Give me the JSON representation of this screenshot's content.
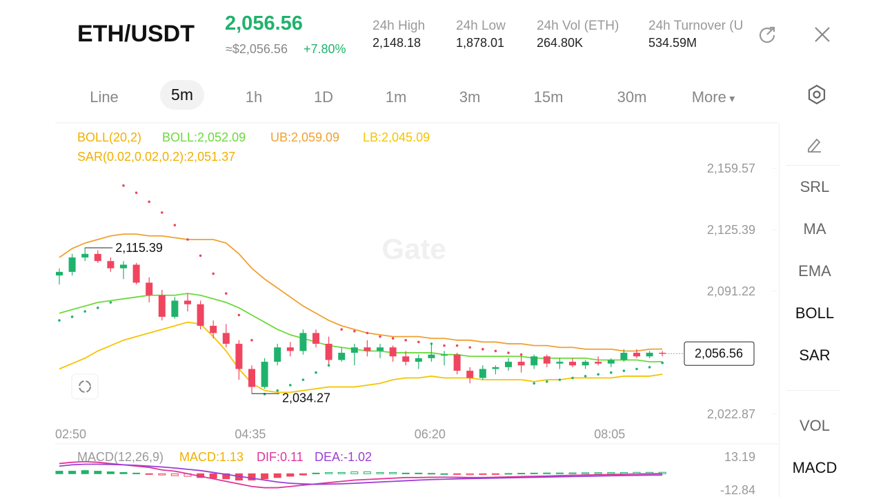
{
  "header": {
    "pair": "ETH/USDT",
    "price": "2,056.56",
    "price_usd": "≈$2,056.56",
    "change": "+7.80%",
    "stats": [
      {
        "label": "24h  High",
        "value": "2,148.18"
      },
      {
        "label": "24h  Low",
        "value": "1,878.01"
      },
      {
        "label": "24h  Vol (ETH)",
        "value": "264.80K"
      },
      {
        "label": "24h  Turnover (U",
        "value": "534.59M"
      }
    ]
  },
  "tabs": [
    "Line",
    "5m",
    "1h",
    "1D",
    "1m",
    "3m",
    "15m",
    "30m",
    "More"
  ],
  "tools": [
    "SRL",
    "MA",
    "EMA",
    "BOLL",
    "SAR",
    "VOL",
    "MACD"
  ],
  "chart_data": [
    {
      "type": "candlestick",
      "watermark": "Gate",
      "legend": [
        "BOLL(20,2)",
        "BOLL:2,052.09",
        "UB:2,059.09",
        "LB:2,045.09"
      ],
      "legend2": "SAR(0.02,0.02,0.2):2,051.37",
      "high_label": "2,115.39",
      "low_label": "2,034.27",
      "last_label": "2,056.56",
      "ylim": [
        2017.1,
        2184.1
      ],
      "yticks": [
        {
          "value": 2159.57,
          "label": "2,159.57"
        },
        {
          "value": 2125.39,
          "label": "2,125.39"
        },
        {
          "value": 2091.22,
          "label": "2,091.22"
        },
        {
          "value": 2022.87,
          "label": "2,022.87"
        }
      ],
      "x": [
        "02:50",
        null,
        null,
        null,
        null,
        null,
        null,
        null,
        null,
        null,
        null,
        null,
        null,
        null,
        "04:35",
        null,
        null,
        null,
        null,
        null,
        null,
        null,
        null,
        null,
        null,
        null,
        null,
        null,
        "06:20",
        null,
        null,
        null,
        null,
        null,
        null,
        null,
        null,
        null,
        null,
        null,
        null,
        null,
        "08:05",
        null,
        null,
        null,
        null,
        null
      ],
      "candles": [
        [
          2100,
          2104,
          2095,
          2102
        ],
        [
          2102,
          2112,
          2100,
          2110
        ],
        [
          2110,
          2115.39,
          2108,
          2112
        ],
        [
          2112,
          2114,
          2107,
          2108
        ],
        [
          2108,
          2110,
          2102,
          2104
        ],
        [
          2104,
          2108,
          2098,
          2106
        ],
        [
          2106,
          2107,
          2095,
          2096
        ],
        [
          2096,
          2099,
          2085,
          2089
        ],
        [
          2089,
          2092,
          2075,
          2077
        ],
        [
          2077,
          2088,
          2076,
          2086
        ],
        [
          2086,
          2090,
          2080,
          2084
        ],
        [
          2084,
          2086,
          2070,
          2072
        ],
        [
          2072,
          2075,
          2065,
          2068
        ],
        [
          2068,
          2073,
          2060,
          2062
        ],
        [
          2062,
          2064,
          2042,
          2048
        ],
        [
          2048,
          2050,
          2034.27,
          2038
        ],
        [
          2038,
          2054,
          2037,
          2052
        ],
        [
          2052,
          2062,
          2050,
          2060
        ],
        [
          2060,
          2063,
          2055,
          2058
        ],
        [
          2058,
          2070,
          2056,
          2068
        ],
        [
          2068,
          2070,
          2060,
          2062
        ],
        [
          2062,
          2066,
          2050,
          2053
        ],
        [
          2053,
          2060,
          2052,
          2057
        ],
        [
          2057,
          2062,
          2050,
          2060
        ],
        [
          2060,
          2064,
          2055,
          2058
        ],
        [
          2058,
          2062,
          2054,
          2060
        ],
        [
          2060,
          2061,
          2052,
          2055
        ],
        [
          2055,
          2058,
          2050,
          2052
        ],
        [
          2052,
          2056,
          2048,
          2054
        ],
        [
          2054,
          2062,
          2052,
          2056
        ],
        [
          2056,
          2058,
          2050,
          2056
        ],
        [
          2056,
          2057,
          2045,
          2047
        ],
        [
          2047,
          2049,
          2040,
          2043
        ],
        [
          2043,
          2050,
          2042,
          2048
        ],
        [
          2048,
          2050,
          2045,
          2049
        ],
        [
          2049,
          2054,
          2047,
          2052
        ],
        [
          2052,
          2055,
          2046,
          2050
        ],
        [
          2050,
          2056,
          2048,
          2055
        ],
        [
          2055,
          2056,
          2049,
          2051
        ],
        [
          2051,
          2054,
          2048,
          2052
        ],
        [
          2052,
          2054,
          2049,
          2050
        ],
        [
          2050,
          2053,
          2048,
          2052
        ],
        [
          2052,
          2055,
          2050,
          2051
        ],
        [
          2051,
          2054,
          2049,
          2053
        ],
        [
          2053,
          2059,
          2052,
          2057
        ],
        [
          2057,
          2059,
          2054,
          2055
        ],
        [
          2055,
          2058,
          2054,
          2057
        ],
        [
          2057,
          2058,
          2055,
          2056.56
        ]
      ],
      "series": [
        {
          "name": "UB",
          "color": "#f0a030",
          "values": [
            2110,
            2115,
            2118,
            2120,
            2122,
            2123,
            2123,
            2122,
            2122,
            2121,
            2120,
            2120,
            2120,
            2118,
            2112,
            2104,
            2098,
            2093,
            2088,
            2083,
            2079,
            2075,
            2072,
            2070,
            2068,
            2067,
            2066,
            2066,
            2066,
            2065,
            2065,
            2064,
            2064,
            2063,
            2063,
            2062,
            2062,
            2061,
            2061,
            2060,
            2060,
            2059,
            2059,
            2059,
            2058,
            2058,
            2059,
            2059.09
          ]
        },
        {
          "name": "BOLL",
          "color": "#6cd93a",
          "values": [
            2079,
            2081,
            2083,
            2085,
            2086,
            2087,
            2088,
            2089,
            2089,
            2089,
            2090,
            2089,
            2087,
            2085,
            2082,
            2078,
            2074,
            2070,
            2067,
            2065,
            2063,
            2061,
            2060,
            2059,
            2058,
            2058,
            2057,
            2057,
            2057,
            2057,
            2056,
            2056,
            2055,
            2055,
            2055,
            2055,
            2055,
            2054,
            2054,
            2054,
            2054,
            2054,
            2053,
            2053,
            2053,
            2053,
            2052,
            2052.09
          ]
        },
        {
          "name": "LB",
          "color": "#f5c400",
          "values": [
            2048,
            2051,
            2054,
            2058,
            2061,
            2064,
            2066,
            2068,
            2070,
            2072,
            2074,
            2073,
            2066,
            2058,
            2048,
            2040,
            2036,
            2035,
            2035,
            2036,
            2037,
            2038,
            2038,
            2038,
            2039,
            2040,
            2042,
            2043,
            2043,
            2044,
            2043,
            2043,
            2043,
            2042,
            2042,
            2042,
            2042,
            2041,
            2042,
            2042,
            2043,
            2043,
            2043,
            2043,
            2044,
            2044,
            2044,
            2045.09
          ]
        }
      ],
      "sar": [
        2075,
        2077,
        2080,
        2082,
        2085,
        2150,
        2146,
        2141,
        2135,
        2128,
        2120,
        2111,
        2101,
        2090,
        2078,
        2064,
        2034,
        2036,
        2039,
        2042,
        2046,
        2050,
        2070,
        2069,
        2068,
        2066,
        2065,
        2064,
        2063,
        2062,
        2061,
        2061,
        2060,
        2059,
        2058,
        2057,
        2056,
        2040,
        2041,
        2042,
        2043,
        2044,
        2045,
        2046,
        2047,
        2048,
        2049,
        2051.37
      ]
    },
    {
      "type": "macd",
      "legend": [
        "MACD(12,26,9)",
        "MACD:1.13",
        "DIF:0.11",
        "DEA:-1.02"
      ],
      "ylim": [
        -17.2,
        22.4
      ],
      "yticks": [
        13.19,
        -12.84
      ],
      "hist": [
        2,
        2,
        2.5,
        2,
        1.5,
        1,
        0.5,
        -0.5,
        -1,
        -1.5,
        -2,
        -3,
        -3.5,
        -4,
        -5,
        -5,
        -4,
        -3,
        -2,
        -1,
        0.5,
        1,
        1,
        1.5,
        1.5,
        1,
        1,
        0.5,
        0.5,
        0.3,
        0,
        -0.5,
        -0.8,
        -0.6,
        -0.3,
        0.2,
        0.4,
        0.5,
        0.6,
        0.6,
        0.7,
        0.8,
        0.9,
        1,
        1,
        1.1,
        1.1,
        1.13
      ],
      "series": [
        {
          "name": "DIF",
          "color": "#e0359a",
          "values": [
            8,
            9,
            9.5,
            9,
            8,
            7,
            6,
            5,
            3,
            2,
            0,
            -2,
            -4,
            -6,
            -8,
            -10,
            -11,
            -11,
            -10,
            -9,
            -8,
            -7,
            -6,
            -5,
            -4.5,
            -4,
            -3.5,
            -3,
            -3,
            -2.8,
            -2.7,
            -2.8,
            -3,
            -3,
            -2.8,
            -2.5,
            -2.2,
            -2,
            -1.8,
            -1.5,
            -1.2,
            -1,
            -0.8,
            -0.6,
            -0.4,
            -0.2,
            0,
            0.11
          ]
        },
        {
          "name": "DEA",
          "color": "#9b3fd6",
          "values": [
            6,
            7,
            7.5,
            7.5,
            7.3,
            7,
            6.6,
            6,
            5.3,
            4.5,
            3.5,
            2.5,
            1,
            -0.5,
            -2,
            -3.5,
            -5,
            -6.5,
            -7.5,
            -8,
            -8.3,
            -8.2,
            -7.9,
            -7.5,
            -7,
            -6.5,
            -6,
            -5.5,
            -5,
            -4.6,
            -4.3,
            -4,
            -3.8,
            -3.6,
            -3.4,
            -3.2,
            -3,
            -2.8,
            -2.6,
            -2.4,
            -2.2,
            -2,
            -1.8,
            -1.6,
            -1.4,
            -1.25,
            -1.1,
            -1.02
          ]
        }
      ]
    }
  ]
}
